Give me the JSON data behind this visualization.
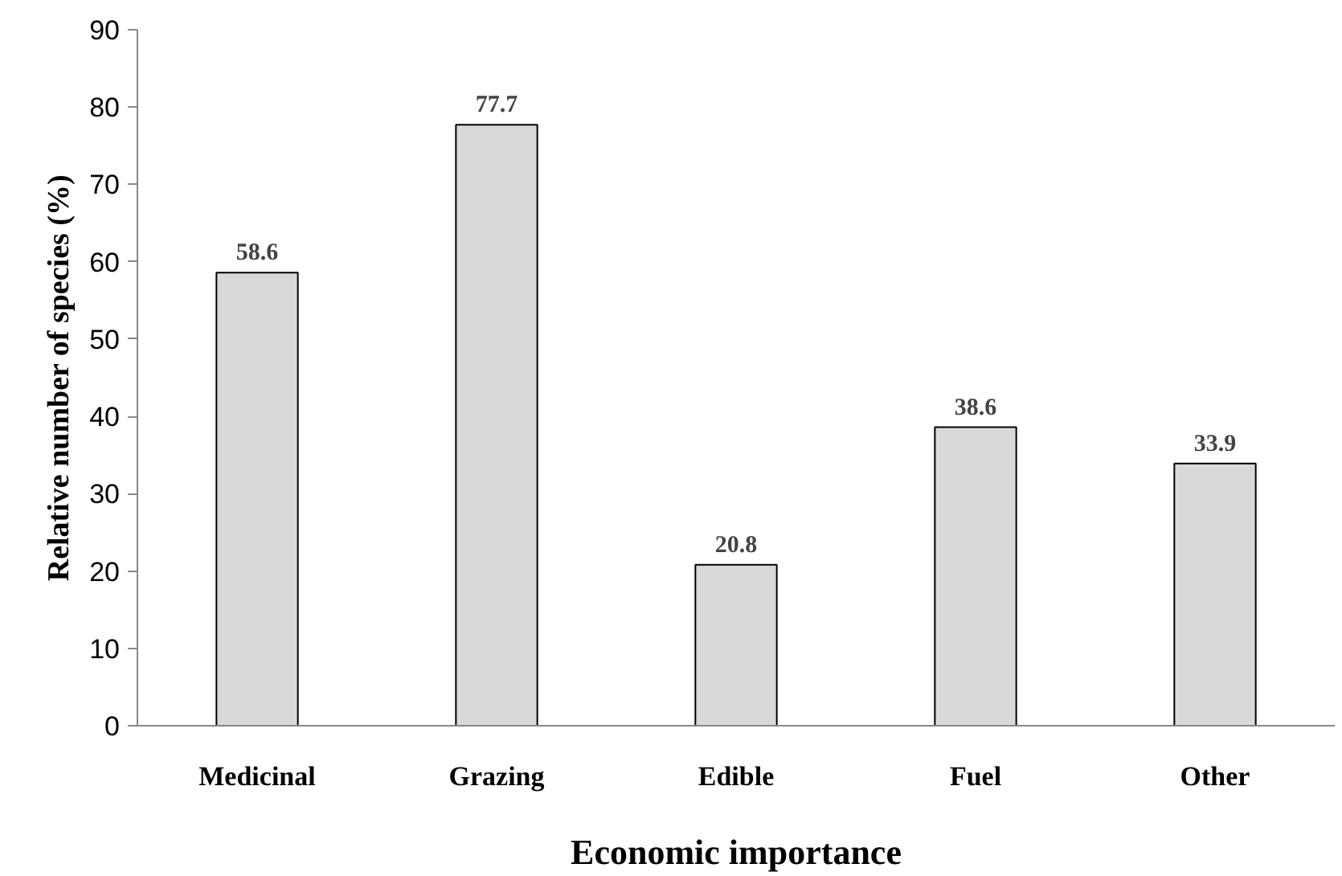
{
  "chart_data": {
    "type": "bar",
    "xlabel": "Economic importance",
    "ylabel": "Relative number of species (%)",
    "categories": [
      "Medicinal",
      "Grazing",
      "Edible",
      "Fuel",
      "Other"
    ],
    "values": [
      58.6,
      77.7,
      20.8,
      38.6,
      33.9
    ],
    "color": "#d9d9d9",
    "ylim": [
      0,
      90
    ],
    "yticks": [
      0,
      10,
      20,
      30,
      40,
      50,
      60,
      70,
      80,
      90
    ],
    "data_labels": true,
    "grid": false
  }
}
